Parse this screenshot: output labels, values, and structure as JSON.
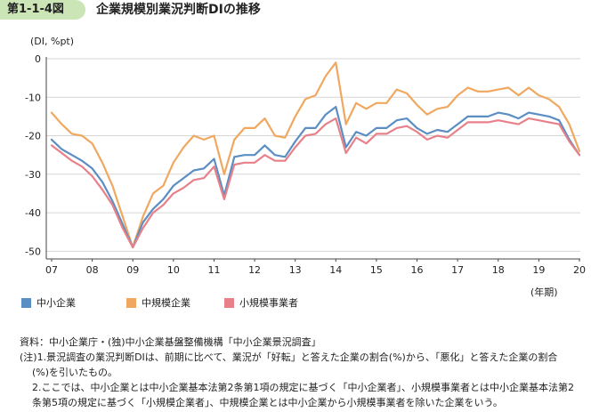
{
  "figure": {
    "badge": "第1-1-4図",
    "title": "企業規模別業況判断DIの推移"
  },
  "chart_data": {
    "type": "line",
    "ylabel": "(DI, %pt)",
    "xlabel": "(年期)",
    "ylim": [
      -52,
      0
    ],
    "yticks": [
      0,
      -10,
      -20,
      -30,
      -40,
      -50
    ],
    "x_labels": [
      "07",
      "08",
      "09",
      "10",
      "11",
      "12",
      "13",
      "14",
      "15",
      "16",
      "17",
      "18",
      "19",
      "20"
    ],
    "x_quarters_per_label": 4,
    "grid": true,
    "legend_position": "bottom",
    "colors": {
      "中小企業": "#5b8ec2",
      "中規模企業": "#f0a860",
      "小規模事業者": "#e8808a"
    },
    "series": [
      {
        "name": "中規模企業",
        "values": [
          -14,
          -17,
          -19.5,
          -20,
          -22,
          -27,
          -33,
          -41,
          -49,
          -41,
          -35,
          -33,
          -27,
          -23,
          -20,
          -21,
          -20,
          -30,
          -21,
          -18,
          -18,
          -15.5,
          -20,
          -20.5,
          -15,
          -10.5,
          -9.5,
          -4.5,
          -1,
          -17,
          -11.5,
          -13,
          -11.5,
          -11.5,
          -8,
          -9,
          -12,
          -14.5,
          -13,
          -12.5,
          -9.5,
          -7.5,
          -8.5,
          -8.5,
          -8,
          -7.5,
          -9.5,
          -7.5,
          -9.5,
          -10.5,
          -12.5,
          -17,
          -24
        ]
      },
      {
        "name": "中小企業",
        "values": [
          -21,
          -23.5,
          -25,
          -26.5,
          -28.5,
          -32,
          -37,
          -43,
          -49,
          -42.5,
          -39,
          -36.5,
          -33,
          -31,
          -29,
          -28.5,
          -26,
          -35.5,
          -25.5,
          -25,
          -25,
          -22.5,
          -25,
          -25.5,
          -21.5,
          -18,
          -18,
          -14.5,
          -12.5,
          -23,
          -19,
          -20,
          -18,
          -18,
          -16,
          -15.5,
          -18,
          -19.5,
          -18.5,
          -19,
          -17,
          -15,
          -15,
          -15,
          -14,
          -14.5,
          -15.5,
          -14,
          -14.5,
          -15,
          -16,
          -21,
          -25
        ]
      },
      {
        "name": "小規模事業者",
        "values": [
          -22.5,
          -24.5,
          -26.5,
          -28,
          -30.5,
          -34,
          -38,
          -44,
          -49,
          -44,
          -40,
          -38,
          -35,
          -33.5,
          -31.5,
          -31,
          -28,
          -36.5,
          -27.5,
          -27,
          -27,
          -25,
          -26.5,
          -26.5,
          -23,
          -20,
          -19.5,
          -17,
          -15.5,
          -24.5,
          -20.5,
          -22,
          -19.5,
          -19.5,
          -18,
          -17.5,
          -19,
          -21,
          -20,
          -20.5,
          -18.5,
          -16.5,
          -16.5,
          -16.5,
          -16,
          -16.5,
          -17,
          -15.5,
          -16,
          -16.5,
          -17,
          -21.5,
          -25
        ]
      }
    ]
  },
  "notes": [
    "資料：中小企業庁・(独)中小企業基盤整備機構「中小企業景況調査」",
    "(注)1.景況調査の業況判断DIは、前期に比べて、業況が「好転」と答えた企業の割合(%)から、「悪化」と答えた企業の割合",
    "(%)を引いたもの。",
    "2.ここでは、中小企業とは中小企業基本法第2条第1項の規定に基づく「中小企業者」、小規模事業者とは中小企業基本法第2",
    "条第5項の規定に基づく「小規模企業者」、中規模企業とは中小企業から小規模事業者を除いた企業をいう。"
  ]
}
